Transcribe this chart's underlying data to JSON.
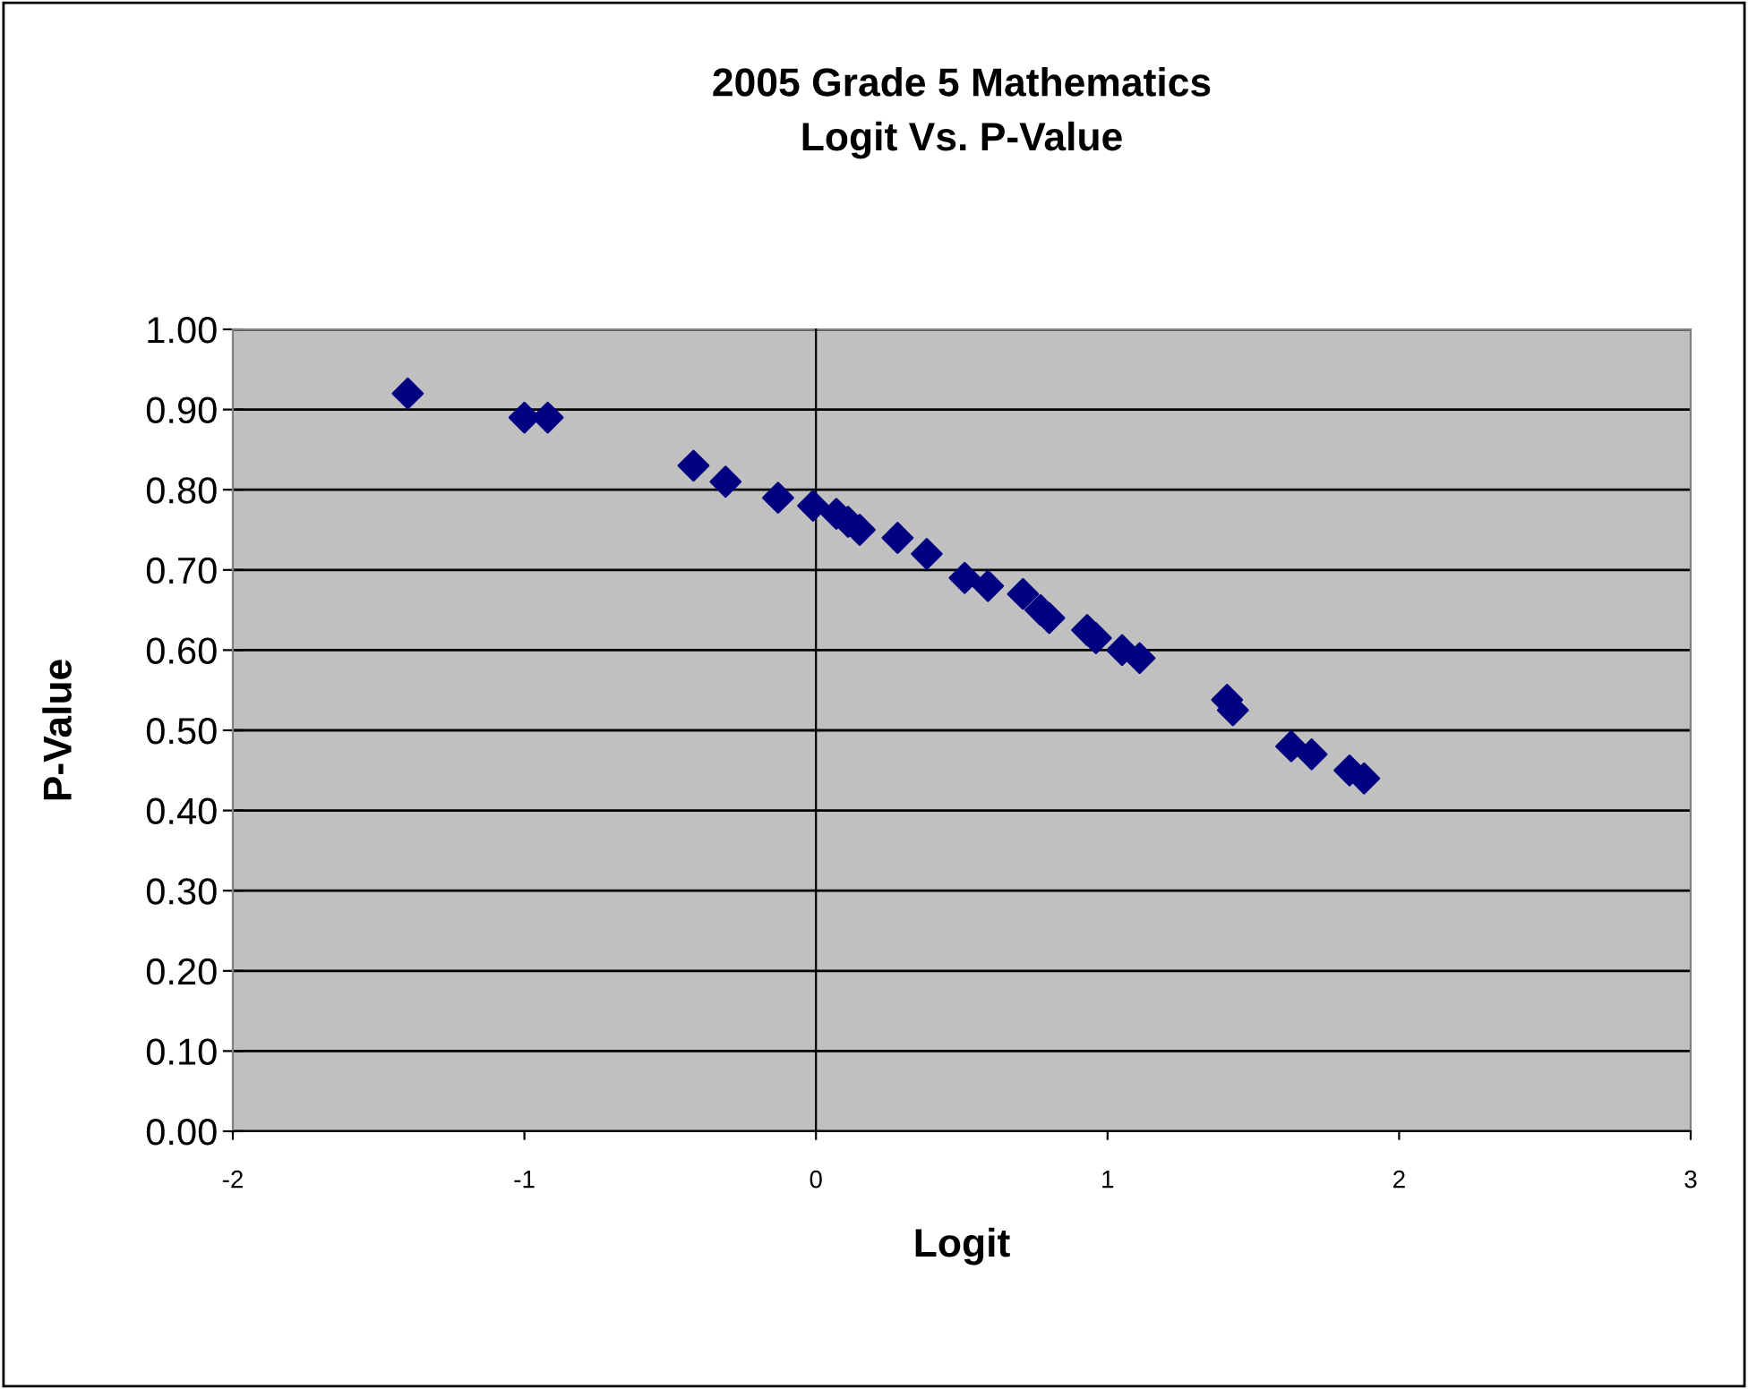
{
  "chart_data": {
    "type": "scatter",
    "title": "2005 Grade 5 Mathematics\nLogit Vs. P-Value",
    "xlabel": "Logit",
    "ylabel": "P-Value",
    "series": [
      {
        "color": "#000080",
        "x": [
          -1.4,
          -1.0,
          -0.92,
          -0.42,
          -0.31,
          -0.13,
          -0.01,
          0.07,
          0.11,
          0.15,
          0.28,
          0.38,
          0.51,
          0.59,
          0.71,
          0.77,
          0.8,
          0.93,
          0.96,
          1.05,
          1.11,
          1.41,
          1.43,
          1.63,
          1.7,
          1.83,
          1.88
        ],
        "values": [
          0.92,
          0.89,
          0.89,
          0.83,
          0.81,
          0.79,
          0.78,
          0.77,
          0.76,
          0.75,
          0.74,
          0.72,
          0.69,
          0.68,
          0.67,
          0.65,
          0.64,
          0.625,
          0.615,
          0.6,
          0.59,
          0.538,
          0.525,
          0.48,
          0.47,
          0.45,
          0.44
        ]
      }
    ],
    "marker": "diamond",
    "grid": "y",
    "legend": false,
    "xlim": [
      -2,
      3
    ],
    "xticks": [
      -2,
      -1,
      0,
      1,
      2,
      3
    ],
    "ylim": [
      0,
      1
    ],
    "yticks": [
      {
        "value": 0,
        "label": "0.00"
      },
      {
        "value": 0.1,
        "label": "0.10"
      },
      {
        "value": 0.2,
        "label": "0.20"
      },
      {
        "value": 0.3,
        "label": "0.30"
      },
      {
        "value": 0.4,
        "label": "0.40"
      },
      {
        "value": 0.5,
        "label": "0.50"
      },
      {
        "value": 0.6,
        "label": "0.60"
      },
      {
        "value": 0.7,
        "label": "0.70"
      },
      {
        "value": 0.8,
        "label": "0.80"
      },
      {
        "value": 0.9,
        "label": "0.90"
      },
      {
        "value": 1,
        "label": "1.00"
      }
    ]
  }
}
